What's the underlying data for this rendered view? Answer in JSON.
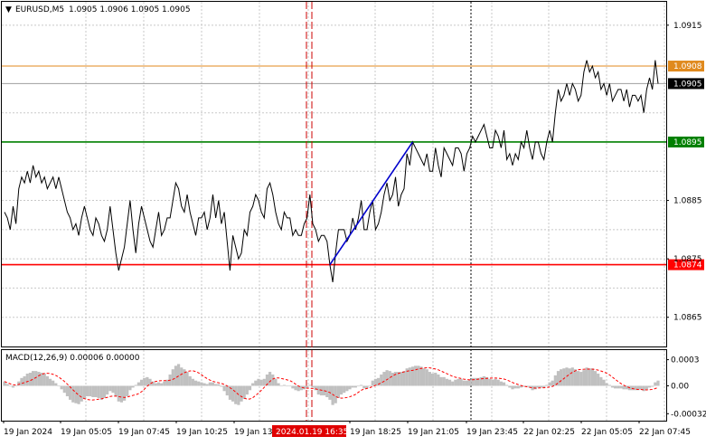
{
  "header": {
    "triangle": "▼",
    "symbol": "EURUSD,M5",
    "ohlc": "1.0905 1.0906 1.0905 1.0905"
  },
  "macd_label": "MACD(12,26,9) 0.00006 0.00000",
  "chart_data": {
    "type": "line",
    "symbol": "EURUSD",
    "timeframe": "M5",
    "price_axis": {
      "ticks": [
        1.0915,
        1.0885,
        1.0875,
        1.0865
      ],
      "tick_labels": [
        "1.0915",
        "1.0885",
        "1.0875",
        "1.0865"
      ],
      "ylim": [
        1.086,
        1.0919
      ]
    },
    "horizontal_levels": [
      {
        "price": 1.0908,
        "label": "1.0908",
        "color": "#e08a1e",
        "role": "upper-level"
      },
      {
        "price": 1.0905,
        "label": "1.0905",
        "color": "#9e9e9e",
        "role": "current-price"
      },
      {
        "price": 1.0895,
        "label": "1.0895",
        "color": "#008000",
        "role": "green-level"
      },
      {
        "price": 1.0874,
        "label": "1.0874",
        "color": "#ff0000",
        "role": "red-level"
      }
    ],
    "time_labels": [
      "19 Jan 2024",
      "19 Jan 05:05",
      "19 Jan 07:45",
      "19 Jan 10:25",
      "19 Jan 13",
      "2024.01.19 16:35",
      "19 Jan 18:25",
      "19 Jan 21:05",
      "19 Jan 23:45",
      "22 Jan 02:25",
      "22 Jan 05:05",
      "22 Jan 07:45"
    ],
    "highlighted_time": "2024.01.19 16:35",
    "trend_line": {
      "from": [
        114,
        1.0874
      ],
      "to": [
        143,
        1.0895
      ],
      "color": "#0000cc"
    },
    "close": [
      1.0883,
      1.0882,
      1.088,
      1.0884,
      1.0881,
      1.0887,
      1.0889,
      1.0888,
      1.089,
      1.0888,
      1.0891,
      1.0889,
      1.089,
      1.0888,
      1.0889,
      1.0887,
      1.0888,
      1.0889,
      1.0887,
      1.0889,
      1.0887,
      1.0885,
      1.0883,
      1.0882,
      1.088,
      1.0881,
      1.0879,
      1.0882,
      1.0884,
      1.0882,
      1.088,
      1.0879,
      1.0882,
      1.0881,
      1.0879,
      1.0878,
      1.088,
      1.0884,
      1.088,
      1.0876,
      1.0873,
      1.0875,
      1.0877,
      1.0881,
      1.0885,
      1.088,
      1.0876,
      1.0881,
      1.0884,
      1.0882,
      1.088,
      1.0878,
      1.0877,
      1.088,
      1.0883,
      1.0879,
      1.088,
      1.0882,
      1.0882,
      1.0885,
      1.0888,
      1.0887,
      1.0884,
      1.0883,
      1.0886,
      1.0883,
      1.0881,
      1.0879,
      1.0882,
      1.0882,
      1.0883,
      1.088,
      1.0882,
      1.0886,
      1.0882,
      1.0885,
      1.0881,
      1.0883,
      1.0878,
      1.0873,
      1.0879,
      1.0877,
      1.0875,
      1.0876,
      1.088,
      1.0879,
      1.0883,
      1.0884,
      1.0886,
      1.0885,
      1.0883,
      1.0882,
      1.0887,
      1.0888,
      1.0886,
      1.0883,
      1.0881,
      1.088,
      1.0883,
      1.0882,
      1.0882,
      1.0879,
      1.088,
      1.0879,
      1.0879,
      1.0881,
      1.0882,
      1.0886,
      1.0881,
      1.088,
      1.0878,
      1.0879,
      1.0879,
      1.0878,
      1.0874,
      1.0871,
      1.0876,
      1.088,
      1.088,
      1.088,
      1.0878,
      1.0879,
      1.0882,
      1.088,
      1.0882,
      1.0885,
      1.088,
      1.088,
      1.0883,
      1.0885,
      1.088,
      1.0881,
      1.0883,
      1.0886,
      1.0888,
      1.0885,
      1.0886,
      1.0889,
      1.0884,
      1.0886,
      1.0887,
      1.0893,
      1.0891,
      1.0895,
      1.0894,
      1.0893,
      1.0892,
      1.0891,
      1.0893,
      1.089,
      1.089,
      1.0894,
      1.0891,
      1.0889,
      1.0894,
      1.0893,
      1.0892,
      1.0891,
      1.0894,
      1.0894,
      1.0893,
      1.089,
      1.0893,
      1.0894,
      1.0896,
      1.0895,
      1.0896,
      1.0897,
      1.0898,
      1.0896,
      1.0894,
      1.0894,
      1.0897,
      1.0896,
      1.0894,
      1.0897,
      1.0892,
      1.0893,
      1.0891,
      1.0893,
      1.0892,
      1.0895,
      1.0894,
      1.0897,
      1.0894,
      1.0892,
      1.0895,
      1.0895,
      1.0893,
      1.0892,
      1.0895,
      1.0897,
      1.0895,
      1.09,
      1.0904,
      1.0902,
      1.0903,
      1.0905,
      1.0903,
      1.0905,
      1.0904,
      1.0902,
      1.0903,
      1.0907,
      1.0909,
      1.0907,
      1.0908,
      1.0906,
      1.0907,
      1.0904,
      1.0905,
      1.0903,
      1.0905,
      1.0902,
      1.0903,
      1.0904,
      1.0904,
      1.0902,
      1.0904,
      1.0901,
      1.0903,
      1.0903,
      1.0902,
      1.0903,
      1.09,
      1.0904,
      1.0906,
      1.0904,
      1.0909,
      1.0905
    ],
    "macd_axis": {
      "tick_labels": [
        "0.0003",
        "0.00",
        "-0.00032"
      ],
      "ylim": [
        -0.0004,
        0.00041
      ]
    },
    "macd_histogram": [
      5e-05,
      2e-05,
      0.0,
      -2e-05,
      0.0,
      5e-05,
      9e-05,
      0.00011,
      0.00014,
      0.00015,
      0.00017,
      0.00017,
      0.00016,
      0.00015,
      0.00014,
      0.00011,
      8e-05,
      6e-05,
      3e-05,
      0.0,
      -4e-05,
      -8e-05,
      -0.00012,
      -0.00016,
      -0.00019,
      -0.0002,
      -0.00021,
      -0.00018,
      -0.00015,
      -0.00012,
      -0.00012,
      -0.00013,
      -0.00013,
      -0.00014,
      -0.00016,
      -0.00014,
      -0.0001,
      -6e-05,
      -8e-05,
      -0.00012,
      -0.00018,
      -0.00019,
      -0.00017,
      -0.00012,
      -5e-05,
      -2e-05,
      1e-05,
      4e-05,
      7e-05,
      9e-05,
      0.0001,
      8e-05,
      5e-05,
      3e-05,
      4e-05,
      3e-05,
      5e-05,
      7e-05,
      0.00013,
      0.00019,
      0.00023,
      0.00025,
      0.00021,
      0.00019,
      0.00016,
      0.00011,
      8e-05,
      6e-05,
      5e-05,
      4e-05,
      3e-05,
      2e-05,
      4e-05,
      4e-05,
      2e-05,
      2e-05,
      -1e-05,
      -6e-05,
      -0.00011,
      -0.00016,
      -0.00018,
      -0.00021,
      -0.00022,
      -0.00018,
      -0.00015,
      -0.0001,
      -5e-05,
      3e-05,
      6e-05,
      8e-05,
      7e-05,
      8e-05,
      0.00013,
      0.00016,
      0.00013,
      8e-05,
      3e-05,
      0.0,
      1e-05,
      0.0,
      0.0,
      -3e-05,
      -5e-05,
      -6e-05,
      -5e-05,
      -4e-05,
      -3e-05,
      1e-05,
      -2e-05,
      -5e-05,
      -0.0001,
      -0.00011,
      -0.00011,
      -0.00013,
      -0.00016,
      -0.00022,
      -0.0002,
      -0.00014,
      -0.0001,
      -8e-05,
      -6e-05,
      -4e-05,
      -2e-05,
      -2e-05,
      0.0,
      1e-05,
      -3e-05,
      -3e-05,
      0.0,
      6e-05,
      8e-05,
      9e-05,
      0.00013,
      0.00016,
      0.00018,
      0.00017,
      0.00015,
      0.00016,
      0.00016,
      0.00016,
      0.00017,
      0.0002,
      0.00021,
      0.00022,
      0.00023,
      0.00023,
      0.00022,
      0.0002,
      0.00019,
      0.00016,
      0.00014,
      0.00015,
      0.00013,
      0.0001,
      0.0001,
      8e-05,
      7e-05,
      5e-05,
      7e-05,
      8e-05,
      8e-05,
      6e-05,
      6e-05,
      7e-05,
      9e-05,
      9e-05,
      9e-05,
      0.0001,
      0.00011,
      0.0001,
      8e-05,
      7e-05,
      8e-05,
      7e-05,
      5e-05,
      4e-05,
      1e-05,
      -2e-05,
      -4e-05,
      -3e-05,
      -3e-05,
      -2e-05,
      -1e-05,
      0.0,
      -2e-05,
      -5e-05,
      -4e-05,
      -2e-05,
      -2e-05,
      -2e-05,
      1e-05,
      4e-05,
      6e-05,
      0.00012,
      0.00017,
      0.00019,
      0.0002,
      0.00021,
      0.0002,
      0.00021,
      0.00019,
      0.00017,
      0.00016,
      0.00018,
      0.00021,
      0.0002,
      0.0002,
      0.00017,
      0.00014,
      0.0001,
      7e-05,
      3e-05,
      1e-05,
      -2e-05,
      -3e-05,
      -3e-05,
      -3e-05,
      -4e-05,
      -4e-05,
      -5e-05,
      -5e-05,
      -5e-05,
      -5e-05,
      -4e-05,
      -6e-05,
      -4e-05,
      -2e-05,
      -1e-05,
      4e-05,
      6e-05
    ],
    "macd_signal_color": "#ff0000",
    "histogram_color": "#c0c0c0"
  }
}
